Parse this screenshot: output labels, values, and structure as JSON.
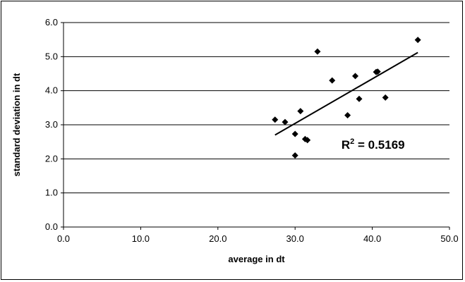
{
  "chart_data": {
    "type": "scatter",
    "xlabel": "average in dt",
    "ylabel": "standard deviation in dt",
    "xlim": [
      0,
      50
    ],
    "ylim": [
      0,
      6
    ],
    "xticks": [
      "0.0",
      "10.0",
      "20.0",
      "30.0",
      "40.0",
      "50.0"
    ],
    "yticks": [
      "0.0",
      "1.0",
      "2.0",
      "3.0",
      "4.0",
      "5.0",
      "6.0"
    ],
    "grid": "horizontal",
    "legend": "none",
    "marker": "diamond",
    "colors": {
      "points": "#000000",
      "trendline": "#000000",
      "grid": "#000000"
    },
    "points": [
      {
        "x": 27.4,
        "y": 3.15
      },
      {
        "x": 28.7,
        "y": 3.08
      },
      {
        "x": 30.0,
        "y": 2.73
      },
      {
        "x": 30.0,
        "y": 2.1
      },
      {
        "x": 30.7,
        "y": 3.4
      },
      {
        "x": 31.3,
        "y": 2.58
      },
      {
        "x": 31.6,
        "y": 2.55
      },
      {
        "x": 32.9,
        "y": 5.15
      },
      {
        "x": 34.8,
        "y": 4.3
      },
      {
        "x": 36.8,
        "y": 3.28
      },
      {
        "x": 37.8,
        "y": 4.43
      },
      {
        "x": 38.3,
        "y": 3.76
      },
      {
        "x": 40.5,
        "y": 4.55
      },
      {
        "x": 40.7,
        "y": 4.56
      },
      {
        "x": 41.7,
        "y": 3.8
      },
      {
        "x": 45.9,
        "y": 5.49
      }
    ],
    "trendline": {
      "type": "linear",
      "x": [
        27.4,
        45.9
      ],
      "y": [
        2.7,
        5.12
      ],
      "annotation": "R² = 0.5169",
      "r2_prefix": "R",
      "r2_sup": "2",
      "r2_value": " = 0.5169"
    }
  }
}
